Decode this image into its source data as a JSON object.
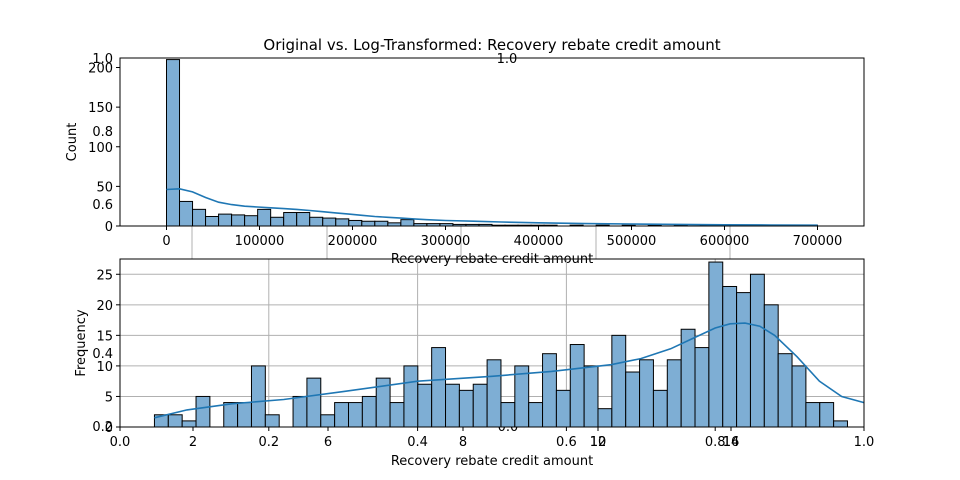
{
  "figure": {
    "title": "Original vs. Log-Transformed: Recovery rebate credit amount",
    "overlay_label": "1.0"
  },
  "chart_data": [
    {
      "type": "bar",
      "subtype": "histogram-with-kde",
      "xlabel": "Recovery rebate credit amount",
      "ylabel": "Count",
      "xlim": [
        -50000,
        750000
      ],
      "ylim": [
        0,
        212
      ],
      "xticks": [
        0,
        100000,
        200000,
        300000,
        400000,
        500000,
        600000,
        700000
      ],
      "yticks": [
        0,
        50,
        100,
        150,
        200
      ],
      "bin_start": 0,
      "bin_width": 14000,
      "counts": [
        210,
        31,
        21,
        12,
        15,
        14,
        13,
        21,
        11,
        17,
        17,
        11,
        10,
        9,
        7,
        6,
        6,
        4,
        8,
        3,
        3,
        3,
        2,
        2,
        2,
        1,
        1,
        1,
        1,
        1,
        0,
        1,
        0,
        1,
        0,
        1,
        0,
        1,
        0,
        1,
        0,
        1,
        0,
        1,
        0,
        1,
        0,
        1,
        0,
        1
      ],
      "kde": {
        "x": [
          0,
          14000,
          28000,
          42000,
          56000,
          70000,
          84000,
          98000,
          112000,
          126000,
          140000,
          154000,
          168000,
          182000,
          196000,
          210000,
          224000,
          238000,
          252000,
          266000,
          280000,
          300000,
          330000,
          360000,
          400000,
          450000,
          500000,
          550000,
          600000,
          650000,
          700000
        ],
        "y": [
          46,
          47,
          43,
          36,
          30,
          27,
          25,
          24,
          23,
          22,
          21,
          19.5,
          18,
          16.5,
          15,
          13.5,
          12,
          11,
          10,
          9,
          8,
          7,
          6,
          5,
          4,
          3,
          2.5,
          2,
          1.5,
          1.2,
          1
        ]
      },
      "grid": false
    },
    {
      "type": "bar",
      "subtype": "histogram-with-kde",
      "xlabel": "Recovery rebate credit amount",
      "ylabel": "Frequency",
      "xlim": [
        0,
        1
      ],
      "ylim": [
        0,
        27.5
      ],
      "xticks": [
        0.0,
        0.2,
        0.4,
        0.6,
        0.8,
        1.0
      ],
      "xtick_labels": [
        "0.0",
        "0.2",
        "0.4",
        "0.6",
        "0.8",
        "1.0"
      ],
      "yticks": [
        0,
        5,
        10,
        15,
        20,
        25
      ],
      "bin_start": 0.0463,
      "bin_width": 0.01863,
      "counts": [
        2,
        2,
        1,
        5,
        0,
        4,
        4,
        10,
        2,
        0,
        5,
        8,
        2,
        4,
        4,
        5,
        8,
        4,
        10,
        7,
        13,
        7,
        6,
        7,
        11,
        4,
        10,
        4,
        12,
        6,
        13.5,
        10,
        3,
        15,
        9,
        11,
        6,
        11,
        16,
        13,
        27,
        23,
        22,
        25,
        20,
        12,
        10,
        4,
        4,
        1
      ],
      "kde": {
        "x": [
          0.0463,
          0.09,
          0.15,
          0.22,
          0.3,
          0.4,
          0.5,
          0.58,
          0.66,
          0.7,
          0.74,
          0.77,
          0.8,
          0.82,
          0.84,
          0.86,
          0.88,
          0.91,
          0.94,
          0.97,
          1.0
        ],
        "y": [
          1.5,
          2.8,
          3.8,
          4.5,
          5.8,
          7.5,
          8.3,
          9.1,
          10.2,
          11.2,
          12.8,
          14.5,
          16.2,
          16.9,
          17.0,
          16.5,
          15.0,
          11.5,
          7.5,
          5.0,
          4.0
        ]
      },
      "grid": true
    }
  ],
  "ghost_axes": {
    "top_left_yticks": [
      "1.0",
      "0.8",
      "0.6"
    ],
    "bottom_left_yticks": [
      "0.4",
      "0.2",
      "0.0"
    ],
    "bottom_xticks": [
      "0.0",
      "0.2",
      "0.4",
      "0.6",
      "0.8",
      "1.0"
    ],
    "bottom_ghost_xticks": [
      "2",
      "6",
      "8",
      "10",
      "12",
      "14",
      "16"
    ]
  }
}
